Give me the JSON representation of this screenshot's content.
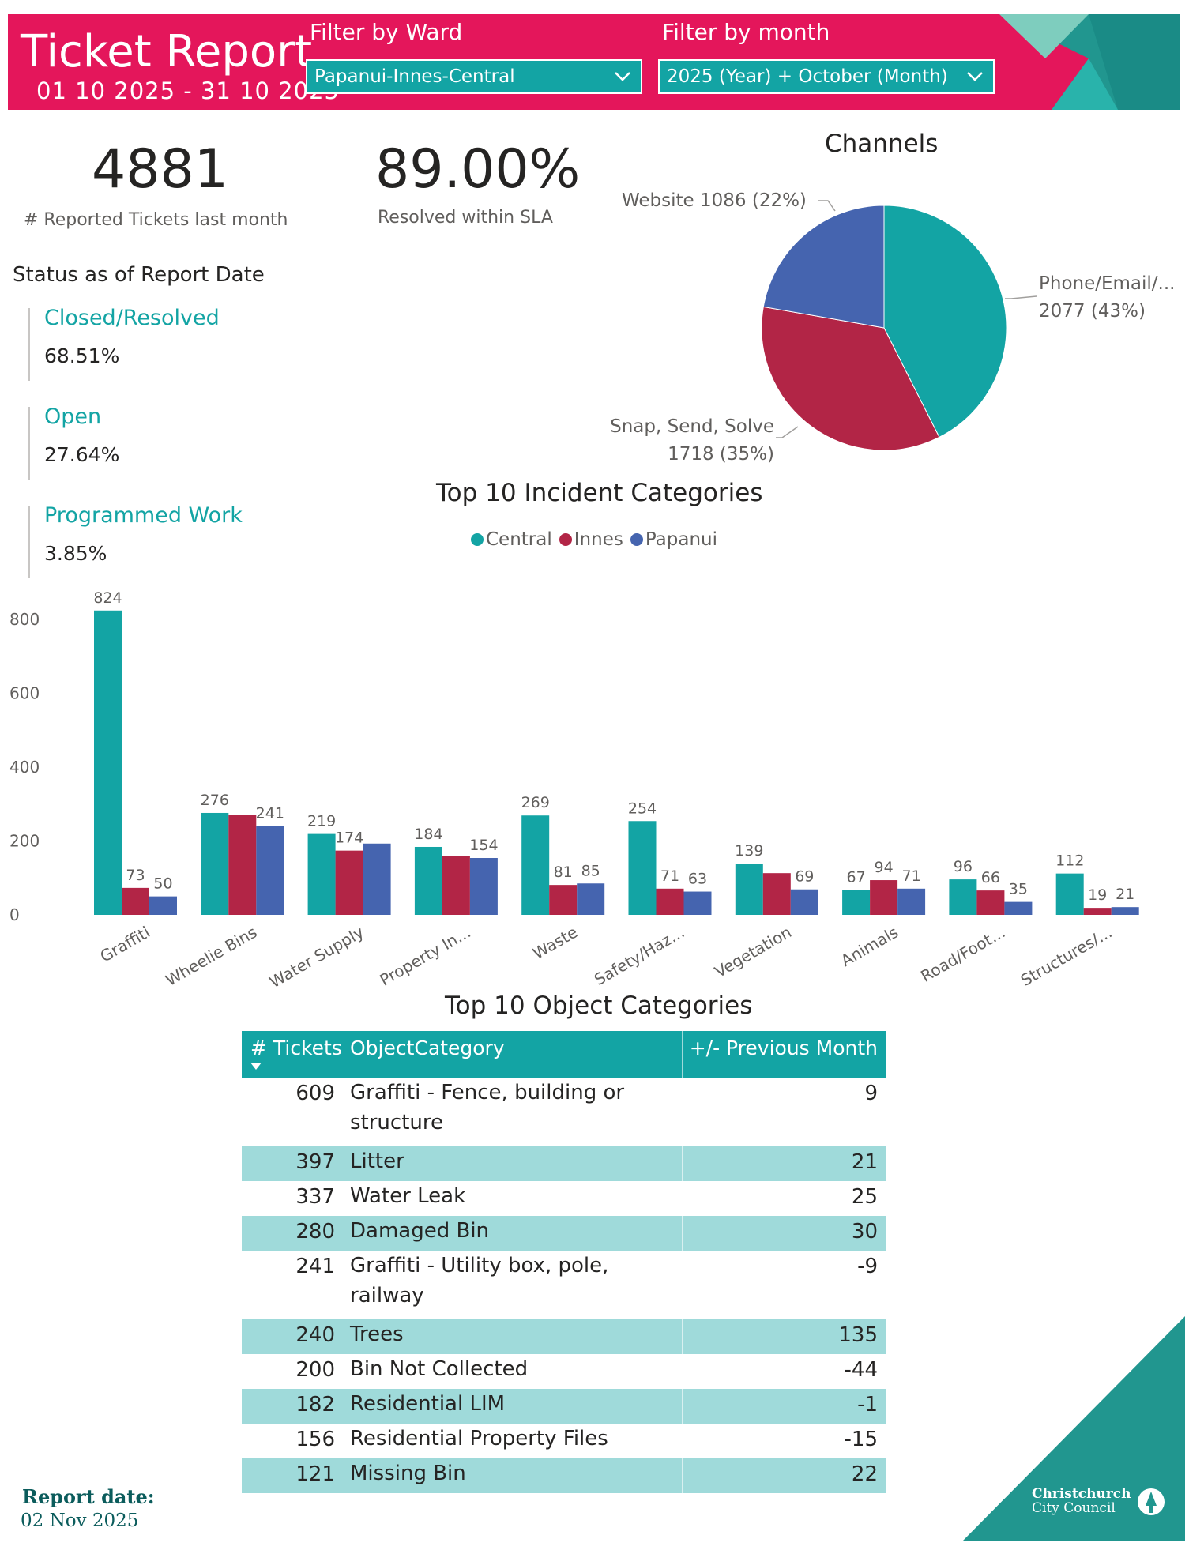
{
  "header": {
    "title": "Ticket Report",
    "date_range": "01 10 2025 - 31 10 2025",
    "ward_filter_label": "Filter by Ward",
    "ward_filter_value": "Papanui-Innes-Central",
    "month_filter_label": "Filter by month",
    "month_filter_value": "2025 (Year) + October (Month)"
  },
  "kpis": {
    "reported": {
      "value": "4881",
      "label": "# Reported Tickets last month"
    },
    "sla": {
      "value": "89.00%",
      "label": "Resolved within SLA"
    }
  },
  "status": {
    "heading": "Status as of Report Date",
    "items": [
      {
        "label": "Closed/Resolved",
        "value": "68.51%"
      },
      {
        "label": "Open",
        "value": "27.64%"
      },
      {
        "label": "Programmed Work",
        "value": "3.85%"
      }
    ]
  },
  "channels_chart": {
    "title": "Channels",
    "type": "pie",
    "slices": [
      {
        "name": "Phone/Email/...",
        "value": 2077,
        "pct": "43%",
        "color": "#13a4a4",
        "label_line1": "Phone/Email/...",
        "label_line2": "2077 (43%)"
      },
      {
        "name": "Snap, Send, Solve",
        "value": 1718,
        "pct": "35%",
        "color": "#b22546",
        "label_line1": "Snap, Send, Solve",
        "label_line2": "1718 (35%)"
      },
      {
        "name": "Website",
        "value": 1086,
        "pct": "22%",
        "color": "#4564af",
        "label_line1": "Website 1086 (22%)"
      }
    ]
  },
  "chart_data": {
    "type": "bar",
    "title": "Top 10 Incident Categories",
    "categories": [
      "Graffiti",
      "Wheelie Bins",
      "Water Supply",
      "Property In...",
      "Waste",
      "Safety/Haz...",
      "Vegetation",
      "Animals",
      "Road/Foot...",
      "Structures/..."
    ],
    "series": [
      {
        "name": "Central",
        "color": "#13a4a4",
        "values": [
          824,
          276,
          219,
          184,
          269,
          254,
          139,
          67,
          96,
          112
        ]
      },
      {
        "name": "Innes",
        "color": "#b22546",
        "values": [
          73,
          270,
          174,
          160,
          81,
          71,
          113,
          94,
          66,
          19
        ]
      },
      {
        "name": "Papanui",
        "color": "#4564af",
        "values": [
          50,
          241,
          193,
          154,
          85,
          63,
          69,
          71,
          35,
          21
        ]
      }
    ],
    "data_labels": [
      [
        "824",
        "73",
        "50"
      ],
      [
        "276",
        "",
        "241"
      ],
      [
        "219",
        "174",
        ""
      ],
      [
        "184",
        "",
        "154"
      ],
      [
        "269",
        "81",
        "85"
      ],
      [
        "254",
        "71",
        "63"
      ],
      [
        "139",
        "",
        "69"
      ],
      [
        "67",
        "94",
        "71"
      ],
      [
        "96",
        "66",
        "35"
      ],
      [
        "112",
        "19",
        "21"
      ]
    ],
    "y_ticks": [
      "0",
      "200",
      "400",
      "600",
      "800"
    ],
    "ylim": [
      0,
      850
    ],
    "grid": false,
    "legend_position": "top-center"
  },
  "table": {
    "title": "Top 10 Object Categories",
    "headers": [
      "# Tickets",
      "ObjectCategory",
      "+/- Previous Month"
    ],
    "rows": [
      {
        "tickets": "609",
        "category": "Graffiti - Fence, building or structure",
        "diff": "9"
      },
      {
        "tickets": "397",
        "category": "Litter",
        "diff": "21"
      },
      {
        "tickets": "337",
        "category": "Water Leak",
        "diff": "25"
      },
      {
        "tickets": "280",
        "category": "Damaged Bin",
        "diff": "30"
      },
      {
        "tickets": "241",
        "category": "Graffiti - Utility box, pole, railway",
        "diff": "-9"
      },
      {
        "tickets": "240",
        "category": "Trees",
        "diff": "135"
      },
      {
        "tickets": "200",
        "category": "Bin Not Collected",
        "diff": "-44"
      },
      {
        "tickets": "182",
        "category": "Residential LIM",
        "diff": "-1"
      },
      {
        "tickets": "156",
        "category": "Residential Property Files",
        "diff": "-15"
      },
      {
        "tickets": "121",
        "category": "Missing Bin",
        "diff": "22"
      }
    ]
  },
  "footer": {
    "report_date_label": "Report date:",
    "report_date": "02 Nov 2025",
    "logo_line1": "Christchurch",
    "logo_line2": "City Council"
  }
}
